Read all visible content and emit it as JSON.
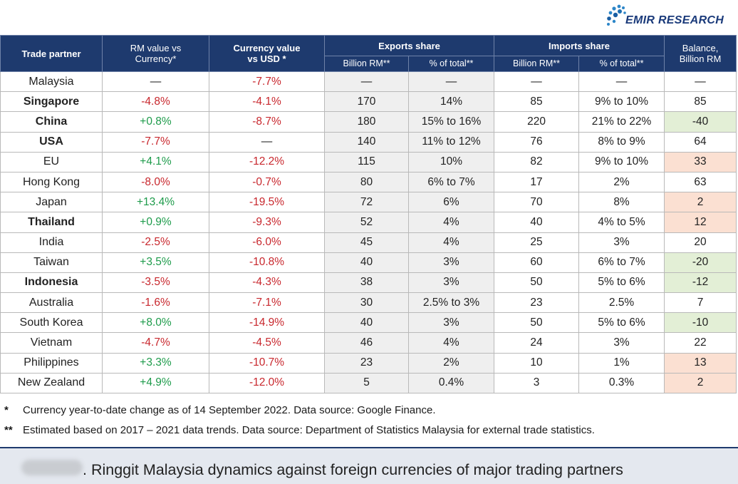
{
  "brand": {
    "name": "EMIR RESEARCH",
    "color": "#1a3a7a"
  },
  "header": {
    "trade_partner": "Trade partner",
    "rm_vs_currency": "RM value vs Currency*",
    "currency_vs_usd": "Currency value vs USD *",
    "exports_share": "Exports share",
    "imports_share": "Imports share",
    "balance": "Balance, Billion RM",
    "billion_rm": "Billion RM**",
    "pct_total": "% of total**"
  },
  "rows": [
    {
      "partner": "Malaysia",
      "rm": "—",
      "cur": "-7.7%",
      "exp_b": "—",
      "exp_p": "—",
      "imp_b": "—",
      "imp_p": "—",
      "bal": "—"
    },
    {
      "partner": "Singapore",
      "rm": "-4.8%",
      "cur": "-4.1%",
      "exp_b": "170",
      "exp_p": "14%",
      "imp_b": "85",
      "imp_p": "9% to 10%",
      "bal": "85"
    },
    {
      "partner": "China",
      "rm": "+0.8%",
      "cur": "-8.7%",
      "exp_b": "180",
      "exp_p": "15% to 16%",
      "imp_b": "220",
      "imp_p": "21% to 22%",
      "bal": "-40"
    },
    {
      "partner": "USA",
      "rm": "-7.7%",
      "cur": "—",
      "exp_b": "140",
      "exp_p": "11% to 12%",
      "imp_b": "76",
      "imp_p": "8% to 9%",
      "bal": "64"
    },
    {
      "partner": "EU",
      "rm": "+4.1%",
      "cur": "-12.2%",
      "exp_b": "115",
      "exp_p": "10%",
      "imp_b": "82",
      "imp_p": "9% to 10%",
      "bal": "33"
    },
    {
      "partner": "Hong Kong",
      "rm": "-8.0%",
      "cur": "-0.7%",
      "exp_b": "80",
      "exp_p": "6% to 7%",
      "imp_b": "17",
      "imp_p": "2%",
      "bal": "63"
    },
    {
      "partner": "Japan",
      "rm": "+13.4%",
      "cur": "-19.5%",
      "exp_b": "72",
      "exp_p": "6%",
      "imp_b": "70",
      "imp_p": "8%",
      "bal": "2"
    },
    {
      "partner": "Thailand",
      "rm": "+0.9%",
      "cur": "-9.3%",
      "exp_b": "52",
      "exp_p": "4%",
      "imp_b": "40",
      "imp_p": "4% to 5%",
      "bal": "12"
    },
    {
      "partner": "India",
      "rm": "-2.5%",
      "cur": "-6.0%",
      "exp_b": "45",
      "exp_p": "4%",
      "imp_b": "25",
      "imp_p": "3%",
      "bal": "20"
    },
    {
      "partner": "Taiwan",
      "rm": "+3.5%",
      "cur": "-10.8%",
      "exp_b": "40",
      "exp_p": "3%",
      "imp_b": "60",
      "imp_p": "6% to 7%",
      "bal": "-20"
    },
    {
      "partner": "Indonesia",
      "rm": "-3.5%",
      "cur": "-4.3%",
      "exp_b": "38",
      "exp_p": "3%",
      "imp_b": "50",
      "imp_p": "5% to 6%",
      "bal": "-12"
    },
    {
      "partner": "Australia",
      "rm": "-1.6%",
      "cur": "-7.1%",
      "exp_b": "30",
      "exp_p": "2.5% to 3%",
      "imp_b": "23",
      "imp_p": "2.5%",
      "bal": "7"
    },
    {
      "partner": "South Korea",
      "rm": "+8.0%",
      "cur": "-14.9%",
      "exp_b": "40",
      "exp_p": "3%",
      "imp_b": "50",
      "imp_p": "5% to 6%",
      "bal": "-10"
    },
    {
      "partner": "Vietnam",
      "rm": "-4.7%",
      "cur": "-4.5%",
      "exp_b": "46",
      "exp_p": "4%",
      "imp_b": "24",
      "imp_p": "3%",
      "bal": "22"
    },
    {
      "partner": "Philippines",
      "rm": "+3.3%",
      "cur": "-10.7%",
      "exp_b": "23",
      "exp_p": "2%",
      "imp_b": "10",
      "imp_p": "1%",
      "bal": "13"
    },
    {
      "partner": "New Zealand",
      "rm": "+4.9%",
      "cur": "-12.0%",
      "exp_b": "5",
      "exp_p": "0.4%",
      "imp_b": "3",
      "imp_p": "0.3%",
      "bal": "2"
    }
  ],
  "notes": {
    "note1_marker": "*",
    "note1": "Currency year-to-date change as of 14 September 2022. Data source: Google Finance.",
    "note2_marker": "**",
    "note2": "Estimated based on 2017 – 2021 data trends. Data source: Department of Statistics Malaysia for external trade statistics."
  },
  "caption": ". Ringgit Malaysia dynamics against foreign currencies of major trading partners",
  "colors": {
    "header_bg": "#1e3a6e",
    "positive": "#1e9b4b",
    "negative": "#c8272d",
    "balance_negative_bg": "#e3efd6",
    "balance_positive_bg": "#fbe0d2"
  }
}
